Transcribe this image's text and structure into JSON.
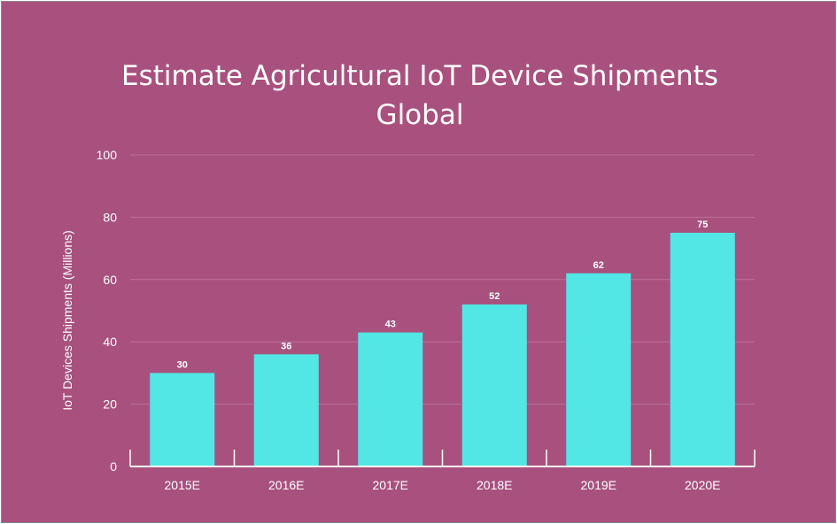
{
  "chart_data": {
    "type": "bar",
    "title": [
      "Estimate Agricultural IoT Device Shipments",
      "Global"
    ],
    "xlabel": "",
    "ylabel": "IoT Devices Shipments (Millions)",
    "categories": [
      "2015E",
      "2016E",
      "2017E",
      "2018E",
      "2019E",
      "2020E"
    ],
    "values": [
      30,
      36,
      43,
      52,
      62,
      75
    ],
    "data_labels": [
      "30",
      "36",
      "43",
      "52",
      "62",
      "75"
    ],
    "ylim": [
      0,
      100
    ],
    "yticks": [
      0,
      20,
      40,
      60,
      80,
      100
    ],
    "grid": true,
    "colors": {
      "background": "#a8517f",
      "bar": "#52e6e5",
      "text": "#ffffff",
      "grid": "#bd6f98"
    }
  }
}
